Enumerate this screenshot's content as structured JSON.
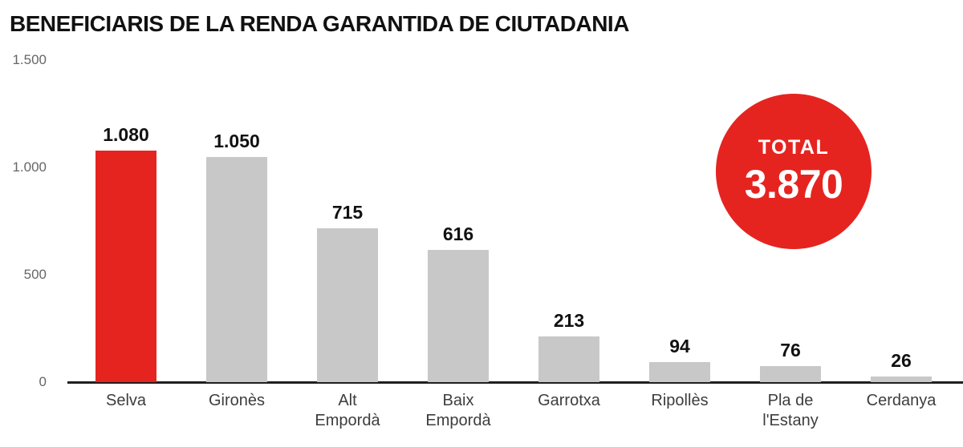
{
  "title": "BENEFICIARIS DE LA RENDA GARANTIDA DE CIUTADANIA",
  "total_badge": {
    "label": "TOTAL",
    "value": "3.870"
  },
  "colors": {
    "highlight": "#e52420",
    "bar": "#c8c8c8",
    "badge": "#e52420",
    "axis": "#1f1f1f"
  },
  "chart_data": {
    "type": "bar",
    "title": "BENEFICIARIS DE LA RENDA GARANTIDA DE CIUTADANIA",
    "categories": [
      "Selva",
      "Gironès",
      "Alt Empordà",
      "Baix Empordà",
      "Garrotxa",
      "Ripollès",
      "Pla de l'Estany",
      "Cerdanya"
    ],
    "category_lines": [
      [
        "Selva"
      ],
      [
        "Gironès"
      ],
      [
        "Alt",
        "Empordà"
      ],
      [
        "Baix",
        "Empordà"
      ],
      [
        "Garrotxa"
      ],
      [
        "Ripollès"
      ],
      [
        "Pla de",
        "l'Estany"
      ],
      [
        "Cerdanya"
      ]
    ],
    "values": [
      1080,
      1050,
      715,
      616,
      213,
      94,
      76,
      26
    ],
    "value_labels": [
      "1.080",
      "1.050",
      "715",
      "616",
      "213",
      "94",
      "76",
      "26"
    ],
    "highlight_index": 0,
    "total": 3870,
    "y_ticks": [
      {
        "value": 0,
        "label": "0"
      },
      {
        "value": 500,
        "label": "500"
      },
      {
        "value": 1000,
        "label": "1.000"
      },
      {
        "value": 1500,
        "label": "1.500"
      }
    ],
    "ylim": [
      0,
      1500
    ],
    "xlabel": "",
    "ylabel": "",
    "grid": false,
    "legend": "none"
  }
}
